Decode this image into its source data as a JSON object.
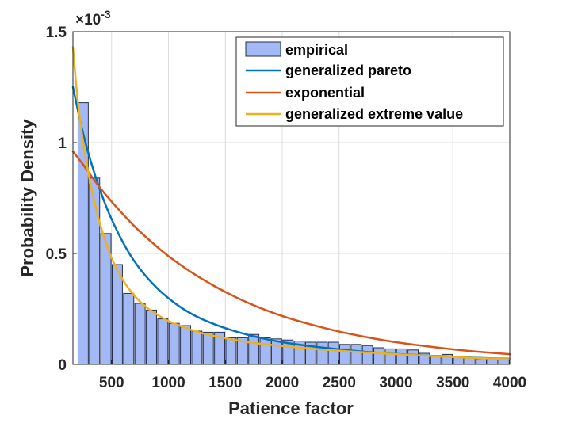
{
  "chart_data": {
    "type": "bar",
    "xlabel": "Patience factor",
    "ylabel": "Probability Density",
    "exponent_label": "×10",
    "exponent_power": "-3",
    "xlim": [
      160,
      4000
    ],
    "ylim": [
      0,
      1.5
    ],
    "xticks": [
      500,
      1000,
      1500,
      2000,
      2500,
      3000,
      3500,
      4000
    ],
    "xtick_labels": [
      "500",
      "1000",
      "1500",
      "2000",
      "2500",
      "3000",
      "3500",
      "4000"
    ],
    "yticks": [
      0,
      0.5,
      1,
      1.5
    ],
    "ytick_labels": [
      "0",
      "0.5",
      "1",
      "1.5"
    ],
    "grid": true,
    "legend_position": "top-right",
    "histogram": {
      "name": "empirical",
      "bin_width": 100,
      "bin_centers": [
        250,
        350,
        450,
        550,
        650,
        750,
        850,
        950,
        1050,
        1150,
        1250,
        1350,
        1450,
        1550,
        1650,
        1750,
        1850,
        1950,
        2050,
        2150,
        2250,
        2350,
        2450,
        2550,
        2650,
        2750,
        2850,
        2950,
        3050,
        3150,
        3250,
        3350,
        3450,
        3550,
        3650,
        3750,
        3850,
        3950
      ],
      "values": [
        1.18,
        0.84,
        0.59,
        0.45,
        0.32,
        0.275,
        0.245,
        0.205,
        0.185,
        0.175,
        0.15,
        0.145,
        0.145,
        0.12,
        0.12,
        0.135,
        0.12,
        0.115,
        0.11,
        0.105,
        0.1,
        0.1,
        0.1,
        0.09,
        0.09,
        0.085,
        0.075,
        0.07,
        0.07,
        0.065,
        0.05,
        0.04,
        0.045,
        0.035,
        0.03,
        0.025,
        0.025,
        0.025
      ]
    },
    "series": [
      {
        "name": "generalized pareto",
        "color": "#0072BD",
        "x": [
          160,
          250,
          350,
          450,
          550,
          650,
          750,
          850,
          950,
          1100,
          1250,
          1400,
          1550,
          1700,
          1850,
          2000,
          2250,
          2500,
          2750,
          3000,
          3250,
          3500,
          3750,
          4000
        ],
        "y": [
          1.25,
          1.04,
          0.86,
          0.715,
          0.6,
          0.505,
          0.43,
          0.37,
          0.32,
          0.26,
          0.215,
          0.182,
          0.155,
          0.133,
          0.115,
          0.1,
          0.082,
          0.068,
          0.056,
          0.047,
          0.04,
          0.034,
          0.029,
          0.025
        ]
      },
      {
        "name": "exponential",
        "color": "#D95319",
        "x": [
          160,
          250,
          400,
          550,
          700,
          850,
          1000,
          1200,
          1400,
          1600,
          1800,
          2000,
          2250,
          2500,
          2750,
          3000,
          3250,
          3500,
          3750,
          4000
        ],
        "y": [
          0.96,
          0.9,
          0.795,
          0.705,
          0.623,
          0.552,
          0.488,
          0.416,
          0.354,
          0.301,
          0.256,
          0.218,
          0.18,
          0.148,
          0.122,
          0.1,
          0.083,
          0.068,
          0.056,
          0.046
        ]
      },
      {
        "name": "generalized extreme value",
        "color": "#EDB120",
        "x": [
          160,
          200,
          250,
          300,
          350,
          400,
          450,
          500,
          600,
          700,
          800,
          900,
          1000,
          1150,
          1300,
          1500,
          1700,
          1900,
          2100,
          2400,
          2700,
          3000,
          3300,
          3600,
          4000
        ],
        "y": [
          1.43,
          1.2,
          1.0,
          0.85,
          0.73,
          0.63,
          0.55,
          0.48,
          0.38,
          0.31,
          0.26,
          0.225,
          0.195,
          0.165,
          0.14,
          0.118,
          0.1,
          0.088,
          0.078,
          0.065,
          0.055,
          0.046,
          0.038,
          0.031,
          0.023
        ]
      }
    ]
  }
}
